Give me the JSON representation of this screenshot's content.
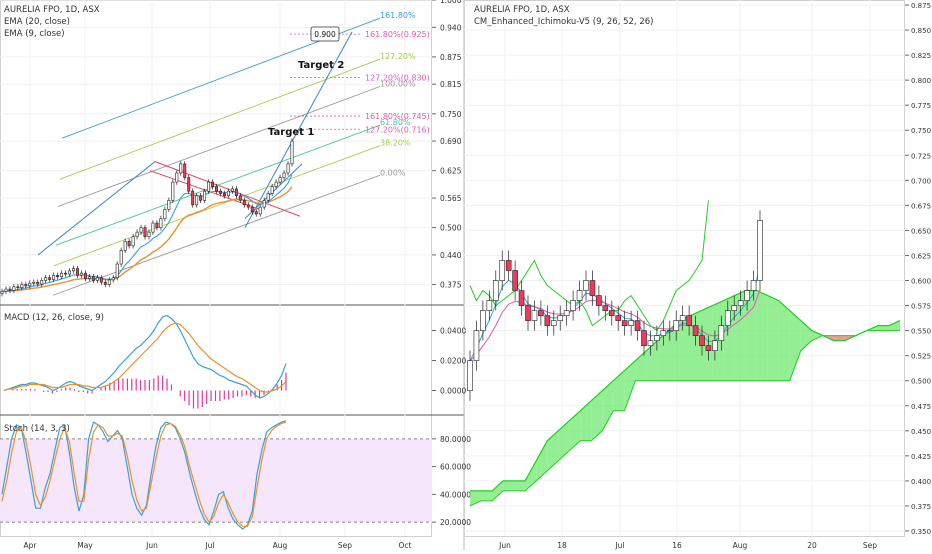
{
  "colors": {
    "up": "#ffffff",
    "down": "#ef3a5d",
    "candle_edge": "#222222",
    "ema20": "#e8922e",
    "ema9": "#3ba0d6",
    "cloud_green": "#66e866",
    "cloud_red": "#ef6c6c",
    "macd": "#3ba0d6",
    "signal": "#e8922e",
    "hist": "#e0399a",
    "stoch_k": "#3ba0d6",
    "stoch_d": "#e8922e",
    "stoch_band": "#f5e6fb"
  },
  "chart_data": [
    {
      "id": "left-price",
      "type": "candlestick",
      "title": "AURELIA FPO, 1D, ASX",
      "indicators": [
        "EMA (20, close)",
        "EMA (9, close)"
      ],
      "ylim": [
        0.33,
        1.0
      ],
      "yticks": [
        "1.000",
        "0.940",
        "0.875",
        "0.815",
        "0.750",
        "0.690",
        "0.625",
        "0.565",
        "0.500",
        "0.440",
        "0.375"
      ],
      "ytick_values": [
        1.0,
        0.94,
        0.875,
        0.815,
        0.75,
        0.69,
        0.625,
        0.565,
        0.5,
        0.44,
        0.375
      ],
      "xticks": [
        "Apr",
        "May",
        "Jun",
        "Jul",
        "Aug",
        "Sep",
        "Oct"
      ],
      "fib_levels": [
        {
          "label": "161.80%",
          "value": 0.96
        },
        {
          "label": "161.80%(0.925)",
          "value": 0.925
        },
        {
          "label": "127.20%",
          "value": 0.87
        },
        {
          "label": "127.20%(0.830)",
          "value": 0.83
        },
        {
          "label": "100.00%",
          "value": 0.81
        },
        {
          "label": "161.80%(0.745)",
          "value": 0.745
        },
        {
          "label": "61.80%",
          "value": 0.725
        },
        {
          "label": "127.20%(0.716)",
          "value": 0.716
        },
        {
          "label": "38.20%",
          "value": 0.68
        },
        {
          "label": "0.00%",
          "value": 0.615
        }
      ],
      "annotations": [
        "Target 1",
        "Target 2",
        "0.900"
      ],
      "close": [
        0.36,
        0.365,
        0.362,
        0.37,
        0.368,
        0.375,
        0.372,
        0.378,
        0.38,
        0.376,
        0.384,
        0.39,
        0.386,
        0.395,
        0.392,
        0.4,
        0.398,
        0.405,
        0.41,
        0.395,
        0.4,
        0.388,
        0.392,
        0.384,
        0.39,
        0.38,
        0.375,
        0.385,
        0.39,
        0.42,
        0.45,
        0.47,
        0.46,
        0.48,
        0.49,
        0.5,
        0.48,
        0.49,
        0.51,
        0.5,
        0.52,
        0.54,
        0.56,
        0.6,
        0.62,
        0.64,
        0.61,
        0.58,
        0.55,
        0.57,
        0.56,
        0.58,
        0.6,
        0.59,
        0.58,
        0.575,
        0.57,
        0.58,
        0.585,
        0.57,
        0.56,
        0.55,
        0.545,
        0.535,
        0.53,
        0.545,
        0.56,
        0.575,
        0.59,
        0.6,
        0.61,
        0.62,
        0.64,
        0.69
      ]
    },
    {
      "id": "left-macd",
      "type": "line",
      "title": "MACD (12, 26, close, 9)",
      "ylim": [
        -0.015,
        0.055
      ],
      "yticks": [
        "0.0400",
        "0.0200",
        "0.0000"
      ],
      "ytick_values": [
        0.04,
        0.02,
        0.0
      ],
      "series": [
        {
          "name": "",
          "values": [
            0.0,
            0.001,
            0.002,
            0.003,
            0.004,
            0.004,
            0.005,
            0.005,
            0.004,
            0.003,
            0.002,
            0.0,
            0.001,
            0.003,
            0.005,
            0.006,
            0.005,
            0.003,
            0.002,
            0.001,
            0.0,
            0.002,
            0.004,
            0.006,
            0.009,
            0.012,
            0.016,
            0.019,
            0.022,
            0.025,
            0.028,
            0.03,
            0.033,
            0.036,
            0.04,
            0.045,
            0.049,
            0.05,
            0.048,
            0.045,
            0.04,
            0.034,
            0.028,
            0.022,
            0.018,
            0.016,
            0.015,
            0.014,
            0.012,
            0.01,
            0.009,
            0.007,
            0.006,
            0.005,
            0.004,
            0.003,
            0.0,
            -0.003,
            -0.005,
            -0.004,
            -0.002,
            0.001,
            0.005,
            0.01,
            0.018
          ]
        },
        {
          "name": "",
          "values": [
            0.0,
            0.001,
            0.001,
            0.002,
            0.003,
            0.003,
            0.004,
            0.004,
            0.004,
            0.004,
            0.003,
            0.002,
            0.002,
            0.002,
            0.003,
            0.004,
            0.004,
            0.004,
            0.003,
            0.003,
            0.002,
            0.002,
            0.002,
            0.003,
            0.004,
            0.006,
            0.008,
            0.011,
            0.014,
            0.017,
            0.02,
            0.023,
            0.026,
            0.029,
            0.032,
            0.035,
            0.039,
            0.042,
            0.044,
            0.045,
            0.044,
            0.041,
            0.038,
            0.034,
            0.03,
            0.027,
            0.024,
            0.021,
            0.019,
            0.017,
            0.015,
            0.013,
            0.011,
            0.009,
            0.008,
            0.006,
            0.004,
            0.002,
            0.0,
            -0.001,
            -0.001,
            0.0,
            0.001,
            0.003,
            0.006
          ]
        }
      ],
      "histogram": [
        0.0,
        0.0,
        0.001,
        0.001,
        0.001,
        0.001,
        0.001,
        0.001,
        0.0,
        -0.001,
        -0.001,
        -0.002,
        -0.001,
        0.001,
        0.002,
        0.002,
        0.001,
        -0.001,
        -0.001,
        -0.002,
        -0.002,
        0.0,
        0.002,
        0.003,
        0.005,
        0.006,
        0.008,
        0.008,
        0.008,
        0.008,
        0.008,
        0.007,
        0.007,
        0.007,
        0.008,
        0.01,
        0.01,
        0.008,
        0.004,
        0.0,
        -0.004,
        -0.007,
        -0.01,
        -0.012,
        -0.012,
        -0.011,
        -0.009,
        -0.007,
        -0.007,
        -0.007,
        -0.006,
        -0.006,
        -0.005,
        -0.004,
        -0.004,
        -0.003,
        -0.004,
        -0.005,
        -0.005,
        -0.003,
        -0.001,
        0.001,
        0.004,
        0.007,
        0.012
      ]
    },
    {
      "id": "left-stoch",
      "type": "line",
      "title": "Stoch (14, 3, 3)",
      "ylim": [
        10,
        95
      ],
      "yticks": [
        "80.0000",
        "60.0000",
        "40.0000",
        "20.0000"
      ],
      "ytick_values": [
        80,
        60,
        40,
        20
      ],
      "bands": [
        20,
        80
      ],
      "series": [
        {
          "name": "",
          "values": [
            40,
            60,
            80,
            90,
            88,
            70,
            50,
            30,
            30,
            45,
            55,
            72,
            88,
            90,
            70,
            45,
            28,
            40,
            80,
            92,
            90,
            85,
            78,
            82,
            86,
            80,
            60,
            40,
            30,
            25,
            32,
            55,
            75,
            88,
            92,
            91,
            88,
            80,
            70,
            55,
            42,
            30,
            22,
            18,
            28,
            40,
            42,
            30,
            22,
            18,
            15,
            18,
            28,
            55,
            72,
            85,
            88,
            90,
            92,
            93
          ]
        },
        {
          "name": "",
          "values": [
            35,
            50,
            70,
            85,
            88,
            78,
            60,
            40,
            32,
            38,
            50,
            65,
            80,
            88,
            78,
            55,
            35,
            35,
            65,
            85,
            90,
            88,
            82,
            82,
            84,
            82,
            68,
            50,
            36,
            28,
            30,
            48,
            66,
            82,
            90,
            91,
            89,
            83,
            74,
            60,
            48,
            36,
            26,
            20,
            24,
            34,
            40,
            34,
            26,
            20,
            17,
            17,
            24,
            45,
            65,
            80,
            86,
            89,
            91,
            92
          ]
        }
      ]
    },
    {
      "id": "right-ichimoku",
      "type": "candlestick",
      "title": "AURELIA FPO, 1D, ASX",
      "indicators": [
        "CM_Enhanced_Ichimoku-V5 (9, 26, 52, 26)"
      ],
      "ylim": [
        0.345,
        0.88
      ],
      "yticks": [
        "0.875",
        "0.850",
        "0.825",
        "0.800",
        "0.775",
        "0.750",
        "0.725",
        "0.700",
        "0.675",
        "0.650",
        "0.625",
        "0.600",
        "0.575",
        "0.550",
        "0.525",
        "0.500",
        "0.475",
        "0.450",
        "0.425",
        "0.400",
        "0.375",
        "0.350"
      ],
      "ytick_values": [
        0.875,
        0.85,
        0.825,
        0.8,
        0.775,
        0.75,
        0.725,
        0.7,
        0.675,
        0.65,
        0.625,
        0.6,
        0.575,
        0.55,
        0.525,
        0.5,
        0.475,
        0.45,
        0.425,
        0.4,
        0.375,
        0.35
      ],
      "xticks": [
        "Jun",
        "18",
        "Jul",
        "16",
        "Aug",
        "20",
        "Sep"
      ],
      "close": [
        0.52,
        0.55,
        0.57,
        0.58,
        0.6,
        0.62,
        0.61,
        0.59,
        0.575,
        0.56,
        0.57,
        0.565,
        0.555,
        0.56,
        0.565,
        0.57,
        0.58,
        0.59,
        0.6,
        0.585,
        0.575,
        0.57,
        0.565,
        0.56,
        0.555,
        0.56,
        0.55,
        0.535,
        0.54,
        0.545,
        0.55,
        0.55,
        0.56,
        0.565,
        0.555,
        0.545,
        0.535,
        0.53,
        0.54,
        0.555,
        0.57,
        0.575,
        0.58,
        0.59,
        0.6,
        0.66
      ],
      "cloud_span_a": [
        0.39,
        0.39,
        0.39,
        0.4,
        0.4,
        0.4,
        0.42,
        0.44,
        0.45,
        0.46,
        0.47,
        0.48,
        0.49,
        0.5,
        0.51,
        0.52,
        0.53,
        0.54,
        0.55,
        0.56,
        0.565,
        0.57,
        0.575,
        0.58,
        0.585,
        0.59,
        0.59,
        0.585,
        0.58,
        0.57,
        0.56,
        0.55,
        0.545,
        0.54,
        0.54,
        0.545,
        0.55,
        0.555,
        0.555,
        0.56
      ],
      "cloud_span_b": [
        0.375,
        0.38,
        0.38,
        0.39,
        0.39,
        0.39,
        0.4,
        0.41,
        0.42,
        0.43,
        0.44,
        0.44,
        0.45,
        0.47,
        0.47,
        0.5,
        0.5,
        0.5,
        0.5,
        0.5,
        0.5,
        0.5,
        0.5,
        0.5,
        0.5,
        0.5,
        0.5,
        0.5,
        0.5,
        0.5,
        0.53,
        0.54,
        0.545,
        0.545,
        0.545,
        0.545,
        0.55,
        0.55,
        0.55,
        0.55
      ]
    }
  ]
}
